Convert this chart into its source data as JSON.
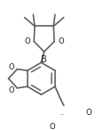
{
  "bg_color": "#ffffff",
  "line_color": "#606060",
  "line_width": 1.2,
  "figsize": [
    1.08,
    1.46
  ],
  "dpi": 100,
  "xlim": [
    0,
    108
  ],
  "ylim": [
    0,
    146
  ]
}
